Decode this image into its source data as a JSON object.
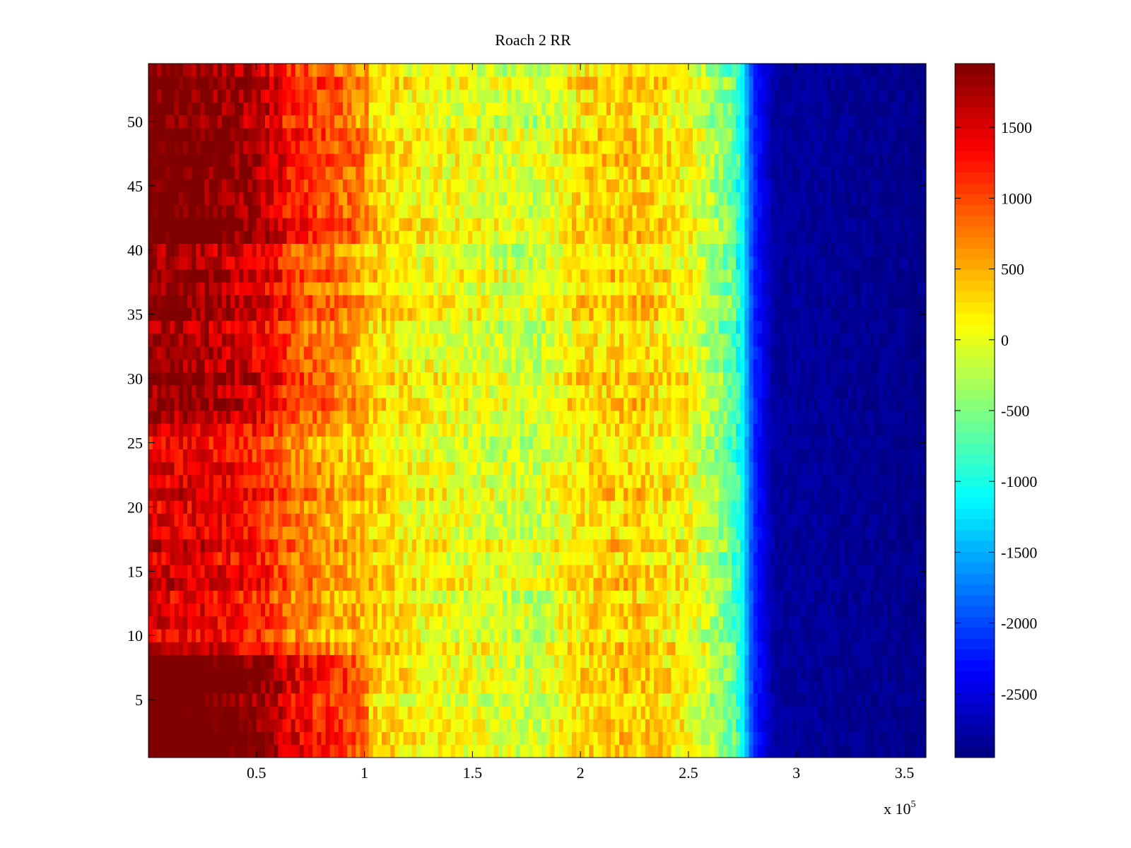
{
  "chart_data": {
    "type": "heatmap",
    "title": "Roach 2 RR",
    "xlabel": "",
    "ylabel": "",
    "x_exponent_label": {
      "base": "x 10",
      "exp": "5"
    },
    "xlim": [
      0,
      360000
    ],
    "ylim": [
      0.5,
      54.5
    ],
    "x_ticks": [
      {
        "value": 50000,
        "label": "0.5"
      },
      {
        "value": 100000,
        "label": "1"
      },
      {
        "value": 150000,
        "label": "1.5"
      },
      {
        "value": 200000,
        "label": "2"
      },
      {
        "value": 250000,
        "label": "2.5"
      },
      {
        "value": 300000,
        "label": "3"
      },
      {
        "value": 350000,
        "label": "3.5"
      }
    ],
    "y_ticks": [
      {
        "value": 5,
        "label": "5"
      },
      {
        "value": 10,
        "label": "10"
      },
      {
        "value": 15,
        "label": "15"
      },
      {
        "value": 20,
        "label": "20"
      },
      {
        "value": 25,
        "label": "25"
      },
      {
        "value": 30,
        "label": "30"
      },
      {
        "value": 35,
        "label": "35"
      },
      {
        "value": 40,
        "label": "40"
      },
      {
        "value": 45,
        "label": "45"
      },
      {
        "value": 50,
        "label": "50"
      }
    ],
    "rows": 54,
    "colorbar": {
      "colormap": "jet",
      "clim": [
        -2950,
        1950
      ],
      "ticks": [
        {
          "value": 1500,
          "label": "1500"
        },
        {
          "value": 1000,
          "label": "1000"
        },
        {
          "value": 500,
          "label": "500"
        },
        {
          "value": 0,
          "label": "0"
        },
        {
          "value": -500,
          "label": "-500"
        },
        {
          "value": -1000,
          "label": "-1000"
        },
        {
          "value": -1500,
          "label": "-1500"
        },
        {
          "value": -2000,
          "label": "-2000"
        },
        {
          "value": -2500,
          "label": "-2500"
        }
      ]
    },
    "profile": {
      "description_x": [
        0,
        20000,
        40000,
        55000,
        65000,
        80000,
        95000,
        103000,
        120000,
        150000,
        180000,
        200000,
        225000,
        250000,
        270000,
        275000,
        280000,
        290000,
        360000
      ],
      "value": [
        1750,
        1700,
        1550,
        1350,
        1000,
        750,
        550,
        350,
        150,
        0,
        -150,
        250,
        350,
        100,
        -600,
        -1100,
        -2100,
        -2800,
        -2900
      ]
    },
    "row_bands": [
      {
        "rows": [
          1,
          8
        ],
        "offset": 600,
        "edge_x": 103000
      },
      {
        "rows": [
          41,
          54
        ],
        "offset": 350,
        "edge_x": 103000
      },
      {
        "rows": [
          9,
          26
        ],
        "offset": -250,
        "edge_x": 95000
      },
      {
        "rows": [
          27,
          27
        ],
        "offset": 0,
        "edge_x": 95000
      },
      {
        "rows": [
          28,
          40
        ],
        "offset": 100,
        "edge_x": 95000
      }
    ],
    "colors": {
      "axis": "#000000",
      "background": "#ffffff"
    }
  }
}
